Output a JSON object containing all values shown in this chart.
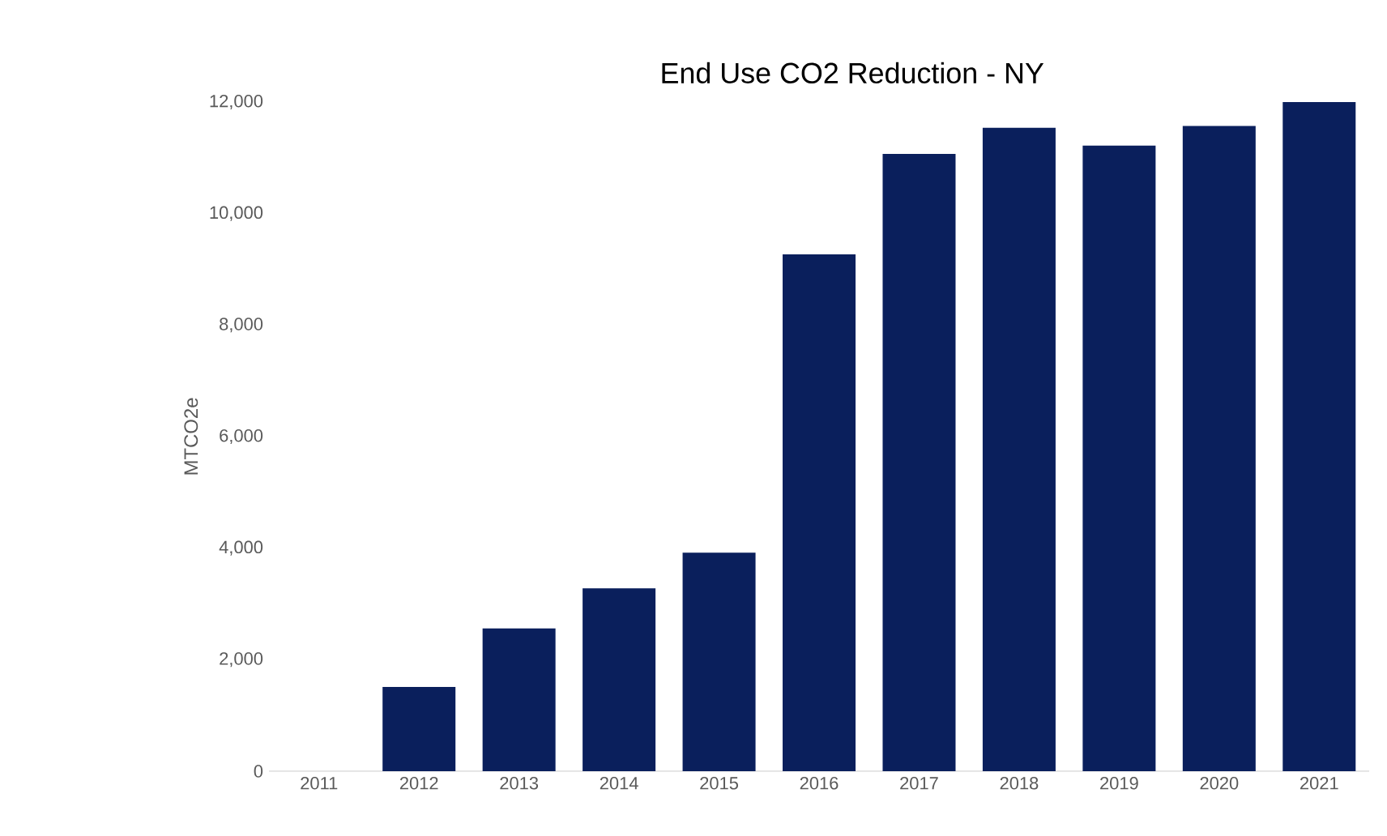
{
  "chart_data": {
    "type": "bar",
    "title": "End Use CO2 Reduction - NY",
    "ylabel": "MTCO2e",
    "categories": [
      "2011",
      "2012",
      "2013",
      "2014",
      "2015",
      "2016",
      "2017",
      "2018",
      "2019",
      "2020",
      "2021"
    ],
    "values": [
      0,
      1510,
      2560,
      3280,
      3920,
      9270,
      11070,
      11540,
      11220,
      11570,
      12000
    ],
    "color": "#0a1f5c",
    "ylim": [
      0,
      12000
    ],
    "yticks": [
      {
        "value": 0,
        "label": "0"
      },
      {
        "value": 2000,
        "label": "2,000"
      },
      {
        "value": 4000,
        "label": "4,000"
      },
      {
        "value": 6000,
        "label": "6,000"
      },
      {
        "value": 8000,
        "label": "8,000"
      },
      {
        "value": 10000,
        "label": "10,000"
      },
      {
        "value": 12000,
        "label": "12,000"
      }
    ],
    "grid": false
  }
}
